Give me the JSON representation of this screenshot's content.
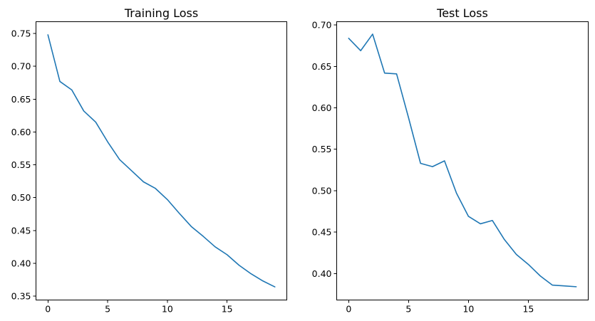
{
  "chart_data": [
    {
      "type": "line",
      "title": "Training Loss",
      "xlabel": "",
      "ylabel": "",
      "x": [
        0,
        1,
        2,
        3,
        4,
        5,
        6,
        7,
        8,
        9,
        10,
        11,
        12,
        13,
        14,
        15,
        16,
        17,
        18,
        19
      ],
      "series": [
        {
          "values": [
            0.748,
            0.677,
            0.664,
            0.632,
            0.615,
            0.585,
            0.558,
            0.541,
            0.524,
            0.514,
            0.497,
            0.476,
            0.456,
            0.441,
            0.425,
            0.413,
            0.397,
            0.384,
            0.373,
            0.364
          ],
          "color": "#1f77b4"
        }
      ],
      "xlim": [
        -1.0,
        20.0
      ],
      "ylim": [
        0.344,
        0.768
      ],
      "xticks": [
        0,
        5,
        10,
        15
      ],
      "xtick_labels": [
        "0",
        "5",
        "10",
        "15"
      ],
      "yticks": [
        0.35,
        0.4,
        0.45,
        0.5,
        0.55,
        0.6,
        0.65,
        0.7,
        0.75
      ],
      "ytick_labels": [
        "0.35",
        "0.40",
        "0.45",
        "0.50",
        "0.55",
        "0.60",
        "0.65",
        "0.70",
        "0.75"
      ],
      "grid": false,
      "legend": false
    },
    {
      "type": "line",
      "title": "Test Loss",
      "xlabel": "",
      "ylabel": "",
      "x": [
        0,
        1,
        2,
        3,
        4,
        5,
        6,
        7,
        8,
        9,
        10,
        11,
        12,
        13,
        14,
        15,
        16,
        17,
        18,
        19
      ],
      "series": [
        {
          "values": [
            0.684,
            0.669,
            0.689,
            0.642,
            0.641,
            0.588,
            0.533,
            0.529,
            0.536,
            0.497,
            0.469,
            0.46,
            0.464,
            0.441,
            0.423,
            0.411,
            0.397,
            0.386,
            0.385,
            0.384
          ],
          "color": "#1f77b4"
        }
      ],
      "xlim": [
        -1.0,
        20.0
      ],
      "ylim": [
        0.368,
        0.704
      ],
      "xticks": [
        0,
        5,
        10,
        15
      ],
      "xtick_labels": [
        "0",
        "5",
        "10",
        "15"
      ],
      "yticks": [
        0.4,
        0.45,
        0.5,
        0.55,
        0.6,
        0.65,
        0.7
      ],
      "ytick_labels": [
        "0.40",
        "0.45",
        "0.50",
        "0.55",
        "0.60",
        "0.65",
        "0.70"
      ],
      "grid": false,
      "legend": false
    }
  ]
}
